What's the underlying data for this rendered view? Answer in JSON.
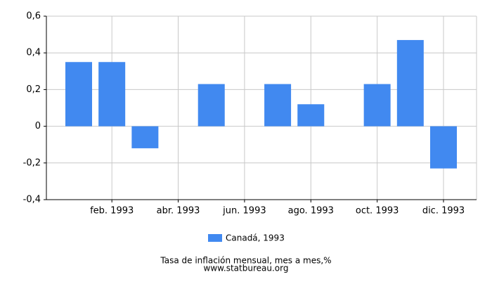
{
  "chart_data": {
    "type": "bar",
    "title": "Tasa de inflación mensual, mes a mes,%",
    "subtitle": "www.statbureau.org",
    "categories": [
      null,
      "feb. 1993",
      null,
      "abr. 1993",
      null,
      "jun. 1993",
      null,
      "ago. 1993",
      null,
      "oct. 1993",
      null,
      "dic. 1993"
    ],
    "series": [
      {
        "name": "Canadá, 1993",
        "color": "#4189f0",
        "values": [
          0.35,
          0.35,
          -0.12,
          0,
          0.23,
          0,
          0.23,
          0.12,
          0,
          0.23,
          0.47,
          -0.23
        ]
      }
    ],
    "ylim": [
      -0.4,
      0.6
    ],
    "yticks": [
      {
        "value": -0.4,
        "label": "-0,4"
      },
      {
        "value": -0.2,
        "label": "-0,2"
      },
      0,
      {
        "value": 0.2,
        "label": "0,2"
      },
      {
        "value": 0.4,
        "label": "0,4"
      },
      {
        "value": 0.6,
        "label": "0,6"
      }
    ],
    "grid": true
  }
}
